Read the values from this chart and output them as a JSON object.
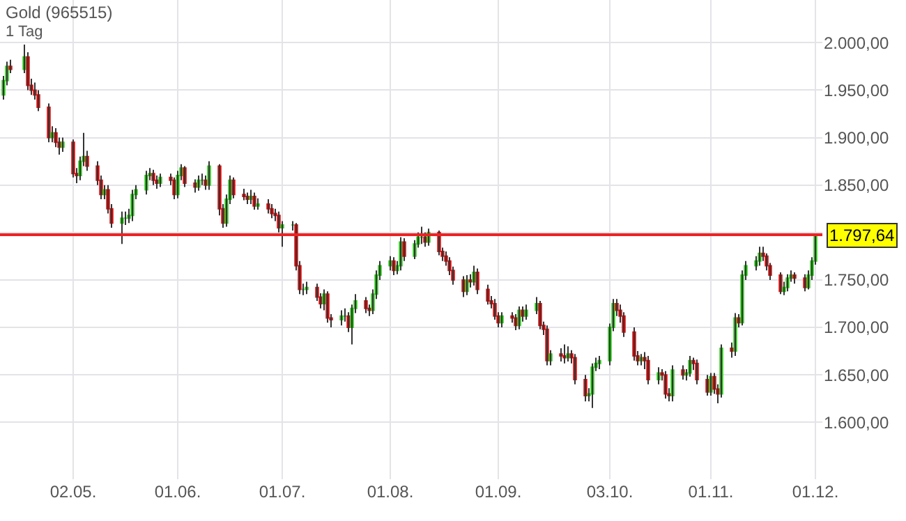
{
  "chart_data": {
    "type": "candlestick",
    "title": "Gold (965515)",
    "subtitle": "1 Tag",
    "x": [
      "--04-12",
      "--04-13",
      "--04-14",
      "--04-18",
      "--04-19",
      "--04-20",
      "--04-21",
      "--04-22",
      "--04-25",
      "--04-26",
      "--04-27",
      "--04-28",
      "--04-29",
      "--05-02",
      "--05-03",
      "--05-04",
      "--05-05",
      "--05-06",
      "--05-09",
      "--05-10",
      "--05-11",
      "--05-12",
      "--05-13",
      "--05-16",
      "--05-17",
      "--05-18",
      "--05-19",
      "--05-20",
      "--05-23",
      "--05-24",
      "--05-25",
      "--05-26",
      "--05-27",
      "--05-30",
      "--05-31",
      "--06-01",
      "--06-02",
      "--06-03",
      "--06-06",
      "--06-07",
      "--06-08",
      "--06-09",
      "--06-10",
      "--06-13",
      "--06-14",
      "--06-15",
      "--06-16",
      "--06-17",
      "--06-20",
      "--06-21",
      "--06-22",
      "--06-23",
      "--06-24",
      "--06-27",
      "--06-28",
      "--06-29",
      "--06-30",
      "--07-01",
      "--07-04",
      "--07-05",
      "--07-06",
      "--07-07",
      "--07-08",
      "--07-11",
      "--07-12",
      "--07-13",
      "--07-14",
      "--07-15",
      "--07-18",
      "--07-19",
      "--07-20",
      "--07-21",
      "--07-22",
      "--07-25",
      "--07-26",
      "--07-27",
      "--07-28",
      "--07-29",
      "--08-01",
      "--08-02",
      "--08-03",
      "--08-04",
      "--08-05",
      "--08-08",
      "--08-09",
      "--08-10",
      "--08-11",
      "--08-12",
      "--08-15",
      "--08-16",
      "--08-17",
      "--08-18",
      "--08-19",
      "--08-22",
      "--08-23",
      "--08-24",
      "--08-25",
      "--08-26",
      "--08-29",
      "--08-30",
      "--08-31",
      "--09-01",
      "--09-02",
      "--09-05",
      "--09-06",
      "--09-07",
      "--09-08",
      "--09-09",
      "--09-12",
      "--09-13",
      "--09-14",
      "--09-15",
      "--09-16",
      "--09-19",
      "--09-20",
      "--09-21",
      "--09-22",
      "--09-23",
      "--09-26",
      "--09-27",
      "--09-28",
      "--09-29",
      "--09-30",
      "--10-03",
      "--10-04",
      "--10-05",
      "--10-06",
      "--10-07",
      "--10-10",
      "--10-11",
      "--10-12",
      "--10-13",
      "--10-14",
      "--10-17",
      "--10-18",
      "--10-19",
      "--10-20",
      "--10-21",
      "--10-24",
      "--10-25",
      "--10-26",
      "--10-27",
      "--10-28",
      "--10-31",
      "--11-01",
      "--11-02",
      "--11-03",
      "--11-04",
      "--11-07",
      "--11-08",
      "--11-09",
      "--11-10",
      "--11-11",
      "--11-14",
      "--11-15",
      "--11-16",
      "--11-17",
      "--11-18",
      "--11-21",
      "--11-22",
      "--11-23",
      "--11-24",
      "--11-25",
      "--11-28",
      "--11-29",
      "--11-30",
      "--12-01"
    ],
    "ohlc": [
      [
        1945,
        1965,
        1940,
        1960
      ],
      [
        1960,
        1980,
        1955,
        1975
      ],
      [
        1975,
        1982,
        1968,
        1972
      ],
      [
        1972,
        1998,
        1968,
        1985
      ],
      [
        1985,
        1990,
        1950,
        1955
      ],
      [
        1955,
        1962,
        1945,
        1950
      ],
      [
        1950,
        1958,
        1940,
        1945
      ],
      [
        1945,
        1950,
        1928,
        1932
      ],
      [
        1932,
        1936,
        1895,
        1900
      ],
      [
        1900,
        1912,
        1895,
        1905
      ],
      [
        1905,
        1910,
        1890,
        1895
      ],
      [
        1895,
        1900,
        1882,
        1890
      ],
      [
        1890,
        1900,
        1885,
        1895
      ],
      [
        1895,
        1898,
        1858,
        1862
      ],
      [
        1862,
        1868,
        1852,
        1860
      ],
      [
        1860,
        1880,
        1855,
        1875
      ],
      [
        1875,
        1905,
        1870,
        1880
      ],
      [
        1880,
        1886,
        1865,
        1870
      ],
      [
        1870,
        1875,
        1850,
        1855
      ],
      [
        1855,
        1860,
        1835,
        1840
      ],
      [
        1840,
        1850,
        1835,
        1845
      ],
      [
        1845,
        1850,
        1820,
        1825
      ],
      [
        1825,
        1830,
        1805,
        1810
      ],
      [
        1810,
        1822,
        1788,
        1815
      ],
      [
        1815,
        1822,
        1808,
        1815
      ],
      [
        1815,
        1825,
        1810,
        1818
      ],
      [
        1818,
        1845,
        1812,
        1840
      ],
      [
        1840,
        1850,
        1835,
        1845
      ],
      [
        1845,
        1865,
        1840,
        1860
      ],
      [
        1860,
        1868,
        1855,
        1862
      ],
      [
        1862,
        1866,
        1850,
        1855
      ],
      [
        1855,
        1860,
        1846,
        1852
      ],
      [
        1852,
        1862,
        1848,
        1858
      ],
      [
        1858,
        1862,
        1850,
        1855
      ],
      [
        1855,
        1858,
        1835,
        1840
      ],
      [
        1840,
        1865,
        1836,
        1860
      ],
      [
        1860,
        1872,
        1855,
        1868
      ],
      [
        1868,
        1870,
        1848,
        1852
      ],
      [
        1852,
        1856,
        1842,
        1848
      ],
      [
        1848,
        1860,
        1844,
        1855
      ],
      [
        1855,
        1862,
        1850,
        1855
      ],
      [
        1855,
        1860,
        1845,
        1850
      ],
      [
        1850,
        1875,
        1845,
        1870
      ],
      [
        1870,
        1872,
        1818,
        1825
      ],
      [
        1825,
        1830,
        1805,
        1810
      ],
      [
        1810,
        1840,
        1806,
        1835
      ],
      [
        1835,
        1860,
        1830,
        1855
      ],
      [
        1855,
        1858,
        1836,
        1840
      ],
      [
        1840,
        1846,
        1834,
        1838
      ],
      [
        1838,
        1842,
        1830,
        1835
      ],
      [
        1835,
        1845,
        1830,
        1838
      ],
      [
        1838,
        1842,
        1824,
        1828
      ],
      [
        1828,
        1836,
        1824,
        1830
      ],
      [
        1830,
        1835,
        1820,
        1825
      ],
      [
        1825,
        1830,
        1815,
        1820
      ],
      [
        1820,
        1825,
        1812,
        1818
      ],
      [
        1818,
        1822,
        1800,
        1805
      ],
      [
        1805,
        1812,
        1785,
        1808
      ],
      [
        1808,
        1812,
        1802,
        1808
      ],
      [
        1808,
        1810,
        1760,
        1765
      ],
      [
        1765,
        1770,
        1735,
        1740
      ],
      [
        1740,
        1746,
        1734,
        1740
      ],
      [
        1740,
        1748,
        1735,
        1742
      ],
      [
        1742,
        1746,
        1728,
        1732
      ],
      [
        1732,
        1736,
        1720,
        1725
      ],
      [
        1725,
        1740,
        1718,
        1735
      ],
      [
        1735,
        1738,
        1705,
        1710
      ],
      [
        1710,
        1714,
        1700,
        1708
      ],
      [
        1708,
        1718,
        1702,
        1712
      ],
      [
        1712,
        1720,
        1706,
        1712
      ],
      [
        1712,
        1716,
        1695,
        1700
      ],
      [
        1700,
        1724,
        1682,
        1720
      ],
      [
        1720,
        1735,
        1715,
        1728
      ],
      [
        1728,
        1732,
        1715,
        1720
      ],
      [
        1720,
        1724,
        1712,
        1718
      ],
      [
        1718,
        1740,
        1714,
        1735
      ],
      [
        1735,
        1760,
        1730,
        1755
      ],
      [
        1755,
        1770,
        1750,
        1765
      ],
      [
        1765,
        1775,
        1760,
        1770
      ],
      [
        1770,
        1774,
        1755,
        1760
      ],
      [
        1760,
        1770,
        1756,
        1765
      ],
      [
        1765,
        1795,
        1760,
        1790
      ],
      [
        1790,
        1794,
        1770,
        1775
      ],
      [
        1775,
        1792,
        1772,
        1788
      ],
      [
        1788,
        1800,
        1784,
        1795
      ],
      [
        1795,
        1806,
        1788,
        1795
      ],
      [
        1795,
        1800,
        1785,
        1790
      ],
      [
        1790,
        1804,
        1786,
        1800
      ],
      [
        1800,
        1802,
        1776,
        1780
      ],
      [
        1780,
        1784,
        1770,
        1775
      ],
      [
        1775,
        1780,
        1765,
        1770
      ],
      [
        1770,
        1774,
        1755,
        1760
      ],
      [
        1760,
        1764,
        1745,
        1750
      ],
      [
        1750,
        1754,
        1732,
        1738
      ],
      [
        1738,
        1755,
        1734,
        1750
      ],
      [
        1750,
        1756,
        1742,
        1748
      ],
      [
        1748,
        1765,
        1744,
        1758
      ],
      [
        1758,
        1762,
        1735,
        1740
      ],
      [
        1740,
        1745,
        1724,
        1728
      ],
      [
        1728,
        1733,
        1720,
        1725
      ],
      [
        1725,
        1730,
        1708,
        1712
      ],
      [
        1712,
        1716,
        1700,
        1705
      ],
      [
        1705,
        1716,
        1700,
        1712
      ],
      [
        1712,
        1716,
        1705,
        1710
      ],
      [
        1710,
        1714,
        1697,
        1702
      ],
      [
        1702,
        1722,
        1698,
        1718
      ],
      [
        1718,
        1722,
        1706,
        1712
      ],
      [
        1712,
        1724,
        1708,
        1718
      ],
      [
        1718,
        1732,
        1714,
        1725
      ],
      [
        1725,
        1728,
        1698,
        1702
      ],
      [
        1702,
        1706,
        1692,
        1698
      ],
      [
        1698,
        1702,
        1660,
        1665
      ],
      [
        1665,
        1676,
        1660,
        1672
      ],
      [
        1672,
        1678,
        1664,
        1670
      ],
      [
        1670,
        1682,
        1662,
        1668
      ],
      [
        1668,
        1680,
        1664,
        1672
      ],
      [
        1672,
        1676,
        1662,
        1668
      ],
      [
        1668,
        1672,
        1640,
        1645
      ],
      [
        1645,
        1650,
        1622,
        1628
      ],
      [
        1628,
        1636,
        1622,
        1630
      ],
      [
        1630,
        1662,
        1615,
        1658
      ],
      [
        1658,
        1668,
        1654,
        1662
      ],
      [
        1662,
        1670,
        1656,
        1665
      ],
      [
        1665,
        1704,
        1660,
        1700
      ],
      [
        1700,
        1730,
        1696,
        1725
      ],
      [
        1725,
        1730,
        1712,
        1718
      ],
      [
        1718,
        1724,
        1705,
        1712
      ],
      [
        1712,
        1716,
        1690,
        1695
      ],
      [
        1695,
        1700,
        1665,
        1670
      ],
      [
        1670,
        1675,
        1660,
        1665
      ],
      [
        1665,
        1672,
        1660,
        1668
      ],
      [
        1668,
        1674,
        1656,
        1665
      ],
      [
        1665,
        1670,
        1640,
        1645
      ],
      [
        1645,
        1658,
        1640,
        1652
      ],
      [
        1652,
        1656,
        1644,
        1650
      ],
      [
        1650,
        1654,
        1625,
        1630
      ],
      [
        1630,
        1636,
        1622,
        1628
      ],
      [
        1628,
        1660,
        1622,
        1655
      ],
      [
        1655,
        1660,
        1645,
        1650
      ],
      [
        1650,
        1656,
        1644,
        1652
      ],
      [
        1652,
        1670,
        1648,
        1665
      ],
      [
        1665,
        1668,
        1655,
        1662
      ],
      [
        1662,
        1666,
        1640,
        1645
      ],
      [
        1645,
        1650,
        1628,
        1632
      ],
      [
        1632,
        1652,
        1628,
        1648
      ],
      [
        1648,
        1652,
        1630,
        1635
      ],
      [
        1635,
        1640,
        1620,
        1630
      ],
      [
        1630,
        1682,
        1626,
        1678
      ],
      [
        1678,
        1684,
        1668,
        1675
      ],
      [
        1675,
        1715,
        1670,
        1710
      ],
      [
        1710,
        1714,
        1700,
        1705
      ],
      [
        1705,
        1760,
        1702,
        1755
      ],
      [
        1755,
        1770,
        1750,
        1765
      ],
      [
        1765,
        1775,
        1760,
        1770
      ],
      [
        1770,
        1785,
        1765,
        1778
      ],
      [
        1778,
        1785,
        1770,
        1775
      ],
      [
        1775,
        1778,
        1760,
        1765
      ],
      [
        1765,
        1768,
        1750,
        1755
      ],
      [
        1755,
        1758,
        1735,
        1738
      ],
      [
        1738,
        1748,
        1734,
        1742
      ],
      [
        1742,
        1756,
        1738,
        1752
      ],
      [
        1752,
        1760,
        1748,
        1755
      ],
      [
        1755,
        1758,
        1746,
        1752
      ],
      [
        1752,
        1756,
        1738,
        1742
      ],
      [
        1742,
        1760,
        1740,
        1755
      ],
      [
        1755,
        1774,
        1750,
        1770
      ],
      [
        1770,
        1797.64,
        1766,
        1797.64
      ]
    ],
    "colors": [
      "#33cc22",
      "#33cc22",
      "#dd1111",
      "#33cc22",
      "#dd1111",
      "#dd1111",
      "#dd1111",
      "#dd1111",
      "#dd1111",
      "#33cc22",
      "#dd1111",
      "#dd1111",
      "#33cc22",
      "#dd1111",
      "#dd1111",
      "#33cc22",
      "#33cc22",
      "#dd1111",
      "#dd1111",
      "#dd1111",
      "#33cc22",
      "#dd1111",
      "#dd1111",
      "#33cc22",
      "#33cc22",
      "#33cc22",
      "#33cc22",
      "#33cc22",
      "#33cc22",
      "#33cc22",
      "#dd1111",
      "#dd1111",
      "#33cc22",
      "#dd1111",
      "#dd1111",
      "#33cc22",
      "#33cc22",
      "#dd1111",
      "#dd1111",
      "#33cc22",
      "#33cc22",
      "#dd1111",
      "#33cc22",
      "#dd1111",
      "#dd1111",
      "#33cc22",
      "#33cc22",
      "#dd1111",
      "#dd1111",
      "#dd1111",
      "#33cc22",
      "#dd1111",
      "#33cc22",
      "#dd1111",
      "#dd1111",
      "#dd1111",
      "#dd1111",
      "#33cc22",
      "#33cc22",
      "#dd1111",
      "#dd1111",
      "#33cc22",
      "#33cc22",
      "#dd1111",
      "#dd1111",
      "#33cc22",
      "#dd1111",
      "#dd1111",
      "#33cc22",
      "#33cc22",
      "#dd1111",
      "#33cc22",
      "#33cc22",
      "#dd1111",
      "#dd1111",
      "#33cc22",
      "#33cc22",
      "#33cc22",
      "#33cc22",
      "#dd1111",
      "#33cc22",
      "#33cc22",
      "#dd1111",
      "#33cc22",
      "#33cc22",
      "#33cc22",
      "#dd1111",
      "#33cc22",
      "#dd1111",
      "#dd1111",
      "#dd1111",
      "#dd1111",
      "#dd1111",
      "#dd1111",
      "#33cc22",
      "#dd1111",
      "#33cc22",
      "#dd1111",
      "#dd1111",
      "#dd1111",
      "#dd1111",
      "#dd1111",
      "#33cc22",
      "#dd1111",
      "#dd1111",
      "#33cc22",
      "#dd1111",
      "#33cc22",
      "#33cc22",
      "#dd1111",
      "#dd1111",
      "#dd1111",
      "#33cc22",
      "#dd1111",
      "#dd1111",
      "#33cc22",
      "#dd1111",
      "#dd1111",
      "#dd1111",
      "#33cc22",
      "#33cc22",
      "#33cc22",
      "#33cc22",
      "#33cc22",
      "#33cc22",
      "#dd1111",
      "#dd1111",
      "#dd1111",
      "#dd1111",
      "#dd1111",
      "#33cc22",
      "#dd1111",
      "#dd1111",
      "#33cc22",
      "#dd1111",
      "#dd1111",
      "#dd1111",
      "#33cc22",
      "#dd1111",
      "#33cc22",
      "#33cc22",
      "#dd1111",
      "#dd1111",
      "#dd1111",
      "#33cc22",
      "#dd1111",
      "#dd1111",
      "#33cc22",
      "#dd1111",
      "#33cc22",
      "#dd1111",
      "#33cc22",
      "#33cc22",
      "#33cc22",
      "#33cc22",
      "#dd1111",
      "#dd1111",
      "#dd1111",
      "#dd1111",
      "#33cc22",
      "#33cc22",
      "#33cc22",
      "#dd1111",
      "#dd1111",
      "#33cc22",
      "#33cc22",
      "#33cc22"
    ],
    "xlim": [
      "--04-11",
      "--12-03"
    ],
    "xticks": [
      {
        "value": "--05-02",
        "label": "02.05."
      },
      {
        "value": "--06-01",
        "label": "01.06."
      },
      {
        "value": "--07-01",
        "label": "01.07."
      },
      {
        "value": "--08-01",
        "label": "01.08."
      },
      {
        "value": "--09-01",
        "label": "01.09."
      },
      {
        "value": "--10-03",
        "label": "03.10."
      },
      {
        "value": "--11-01",
        "label": "01.11."
      },
      {
        "value": "--12-01",
        "label": "01.12."
      }
    ],
    "ylim": [
      1540,
      2045
    ],
    "yticks": [
      {
        "value": 1600,
        "label": "1.600,00"
      },
      {
        "value": 1650,
        "label": "1.650,00"
      },
      {
        "value": 1700,
        "label": "1.700,00"
      },
      {
        "value": 1750,
        "label": "1.750,00"
      },
      {
        "value": 1800,
        "label": null
      },
      {
        "value": 1850,
        "label": "1.850,00"
      },
      {
        "value": 1900,
        "label": "1.900,00"
      },
      {
        "value": 1950,
        "label": "1.950,00"
      },
      {
        "value": 2000,
        "label": "2.000,00"
      }
    ],
    "ref_lines": [
      {
        "axis": "y",
        "value": 1797.64,
        "label": "1.797,64",
        "color": "#ee2222"
      }
    ],
    "grid": true,
    "legend": false
  }
}
